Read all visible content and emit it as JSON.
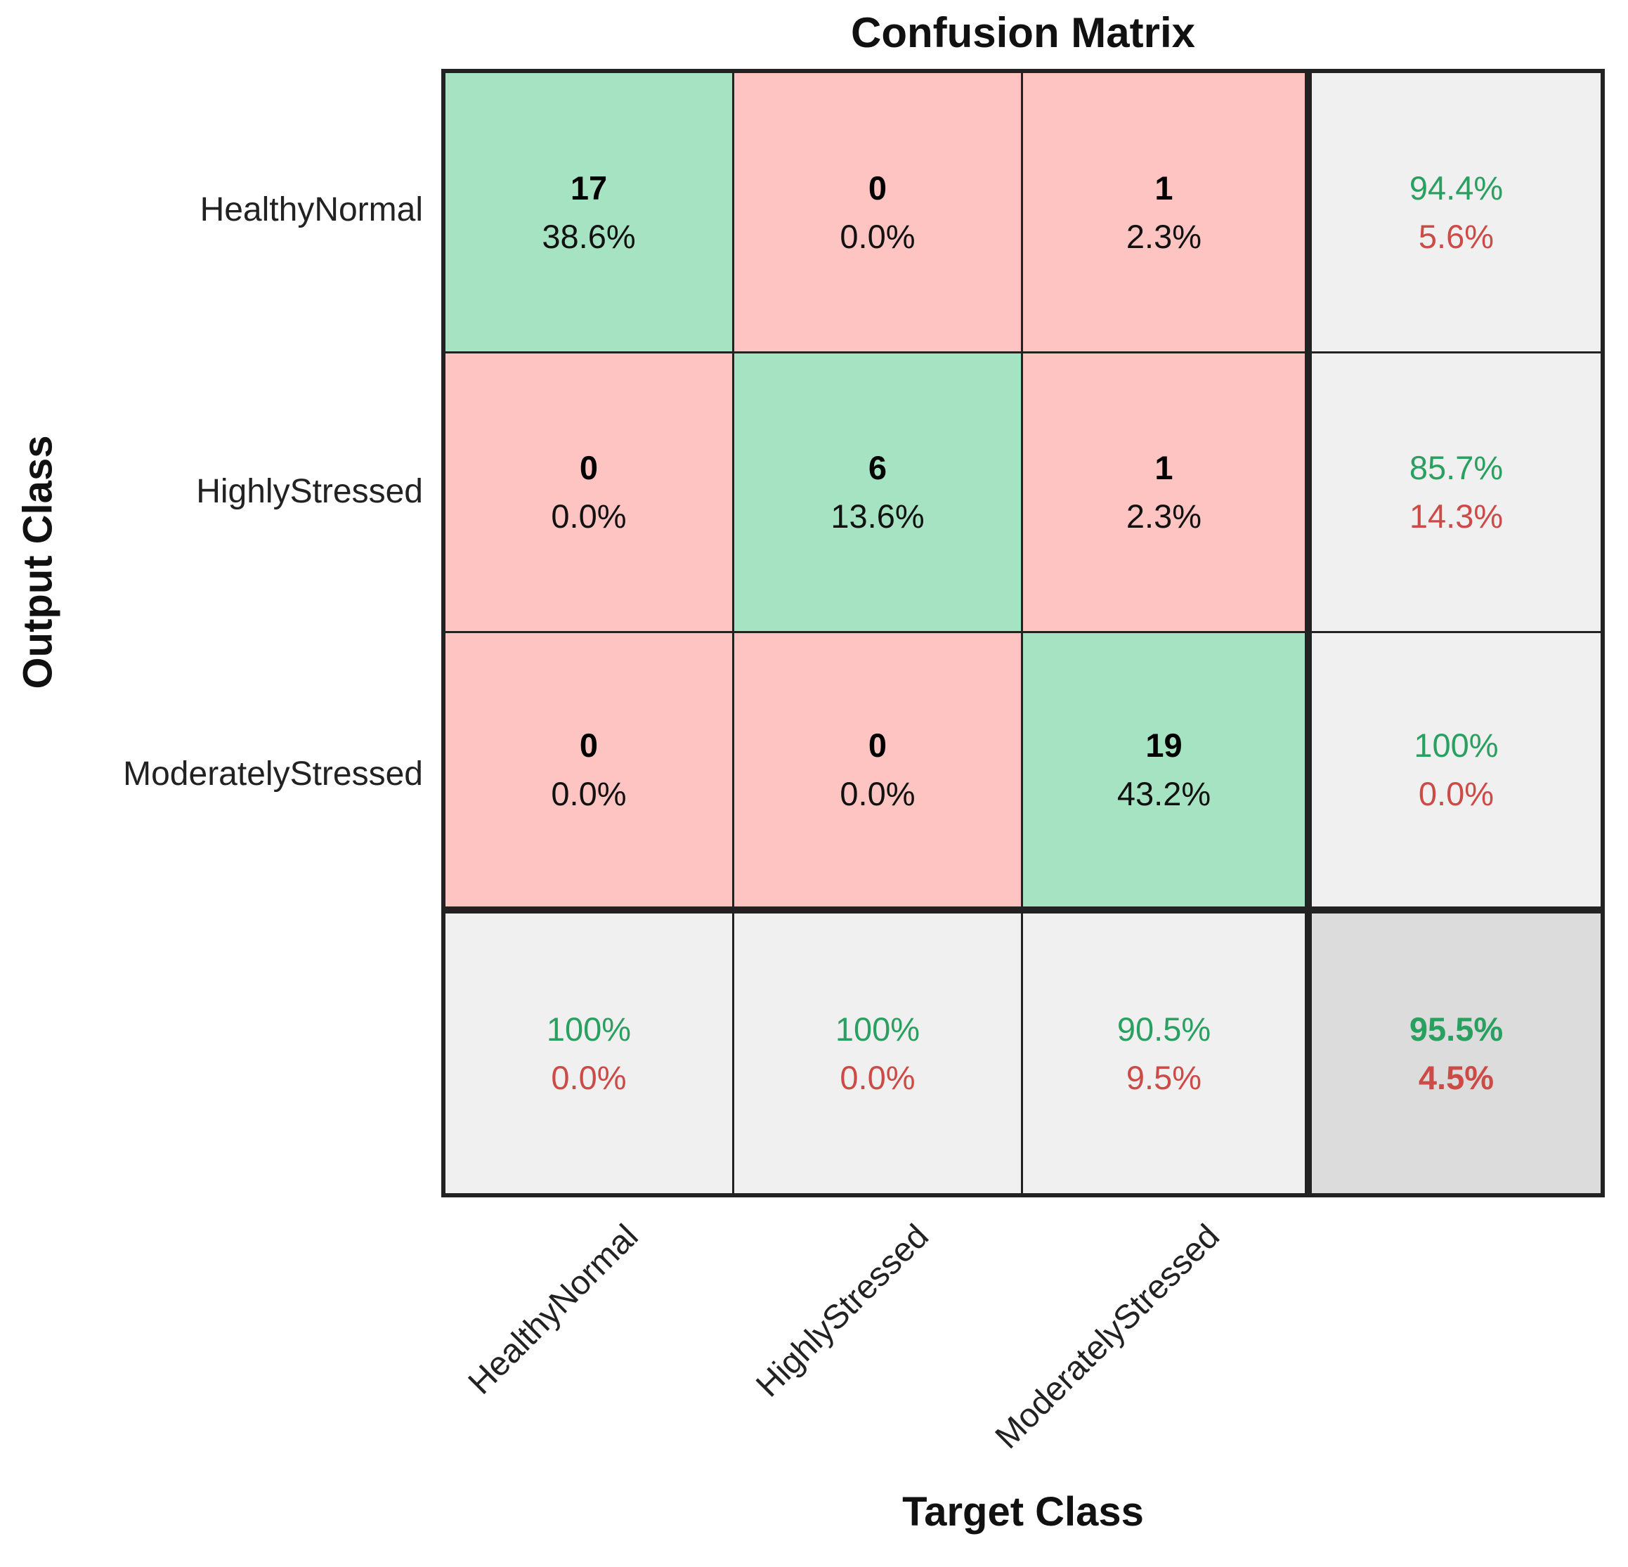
{
  "chart_data": {
    "type": "heatmap",
    "title": "Confusion Matrix",
    "xlabel": "Target Class",
    "ylabel": "Output Class",
    "classes": [
      "HealthyNormal",
      "HighlyStressed",
      "ModeratelyStressed"
    ],
    "counts_matrix": [
      [
        17,
        0,
        1
      ],
      [
        0,
        6,
        1
      ],
      [
        0,
        0,
        19
      ]
    ],
    "percent_matrix": [
      [
        "38.6%",
        "0.0%",
        "2.3%"
      ],
      [
        "0.0%",
        "13.6%",
        "2.3%"
      ],
      [
        "0.0%",
        "0.0%",
        "43.2%"
      ]
    ],
    "legend_position": "none",
    "grid_on": false,
    "grid": {
      "r0": {
        "c0": {
          "v": "17",
          "p": "38.6%"
        },
        "c1": {
          "v": "0",
          "p": "0.0%"
        },
        "c2": {
          "v": "1",
          "p": "2.3%"
        },
        "sum": {
          "g": "94.4%",
          "r": "5.6%"
        }
      },
      "r1": {
        "c0": {
          "v": "0",
          "p": "0.0%"
        },
        "c1": {
          "v": "6",
          "p": "13.6%"
        },
        "c2": {
          "v": "1",
          "p": "2.3%"
        },
        "sum": {
          "g": "85.7%",
          "r": "14.3%"
        }
      },
      "r2": {
        "c0": {
          "v": "0",
          "p": "0.0%"
        },
        "c1": {
          "v": "0",
          "p": "0.0%"
        },
        "c2": {
          "v": "19",
          "p": "43.2%"
        },
        "sum": {
          "g": "100%",
          "r": "0.0%"
        }
      },
      "colsum": {
        "c0": {
          "g": "100%",
          "r": "0.0%"
        },
        "c1": {
          "g": "100%",
          "r": "0.0%"
        },
        "c2": {
          "g": "90.5%",
          "r": "9.5%"
        },
        "total": {
          "g": "95.5%",
          "r": "4.5%"
        }
      }
    }
  },
  "colors": {
    "correct_cell": "#a6e3c2",
    "incorrect_cell": "#fdc4c1",
    "summary_cell": "#f0f0f0",
    "total_cell": "#dcdcdc",
    "good_text": "#2aa060",
    "bad_text": "#cc4b47",
    "border": "#222222"
  }
}
